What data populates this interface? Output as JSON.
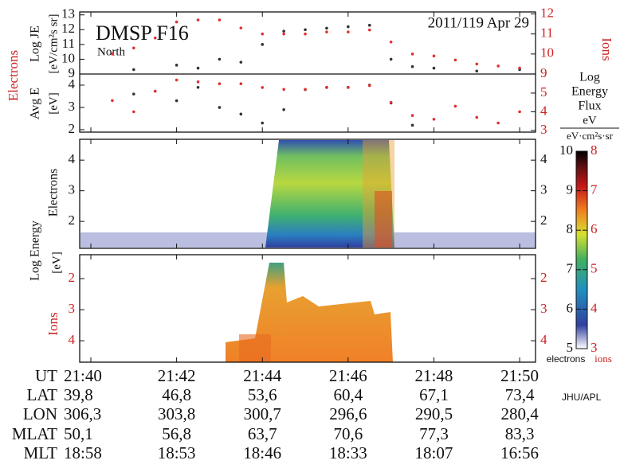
{
  "title": "DMSP F16",
  "hemisphere": "North",
  "date": "2011/119 Apr 29",
  "credit": "JHU/APL",
  "xlim": [
    -0.26,
    10.37
  ],
  "xticks": [
    {
      "value": 0,
      "label": "21:40"
    },
    {
      "value": 2,
      "label": "21:42"
    },
    {
      "value": 4,
      "label": "21:44"
    },
    {
      "value": 6,
      "label": "21:46"
    },
    {
      "value": 8,
      "label": "21:48"
    },
    {
      "value": 10,
      "label": "21:50"
    }
  ],
  "x": [
    0,
    0.5,
    1,
    1.5,
    2,
    2.5,
    3,
    3.5,
    4,
    4.5,
    5,
    5.5,
    6,
    6.5,
    7,
    7.5,
    8,
    8.5,
    9,
    9.5,
    10
  ],
  "flux_panel": {
    "y_label": "Log JE",
    "y_unit": "[eV/cm²s sr]",
    "ylim": [
      9,
      13.2
    ],
    "yticks": [
      9,
      10,
      11,
      12,
      13
    ],
    "y2lim": [
      9,
      12.1
    ],
    "y2ticks": [
      9,
      10,
      11,
      12
    ],
    "series": [
      {
        "name": "Electrons",
        "color": "#333333",
        "axis": "y",
        "values": [
          null,
          null,
          9.3,
          null,
          9.6,
          9.4,
          10.0,
          9.8,
          11.0,
          11.9,
          12.0,
          12.1,
          12.2,
          12.3,
          10.0,
          9.5,
          9.4,
          null,
          9.2,
          null,
          9.3
        ]
      },
      {
        "name": "Ions",
        "color": "#e03030",
        "axis": "y2",
        "values": [
          null,
          10.0,
          10.3,
          10.8,
          11.6,
          11.7,
          11.7,
          11.3,
          11.0,
          11.0,
          11.0,
          11.1,
          11.1,
          11.2,
          10.6,
          10.0,
          9.9,
          9.7,
          9.5,
          9.4,
          9.3
        ]
      }
    ]
  },
  "energy_panel": {
    "y_label": "Avg E",
    "y_unit": "[eV]",
    "ylim": [
      1.89,
      4.5
    ],
    "yticks": [
      2,
      3,
      4
    ],
    "y2lim": [
      2.91,
      6.02
    ],
    "y2ticks": [
      3,
      4,
      5
    ],
    "series": [
      {
        "name": "Electrons",
        "color": "#333333",
        "axis": "y",
        "values": [
          null,
          null,
          3.6,
          null,
          3.3,
          3.9,
          3.0,
          2.7,
          2.3,
          2.9,
          3.8,
          3.9,
          3.9,
          4.0,
          3.2,
          2.2,
          null,
          null,
          null,
          null,
          null
        ]
      },
      {
        "name": "Ions",
        "color": "#e03030",
        "axis": "y2",
        "values": [
          null,
          4.6,
          4.0,
          5.1,
          5.7,
          5.6,
          5.5,
          5.5,
          5.3,
          5.2,
          5.2,
          5.3,
          5.3,
          5.4,
          4.5,
          3.8,
          3.6,
          4.3,
          3.7,
          3.4,
          4.0
        ]
      }
    ]
  },
  "spectrogram_label": "Log Energy",
  "spectrogram_unit": "[eV]",
  "electron_spectrogram": {
    "y_label": "Electrons",
    "ylim": [
      1.12,
      4.68
    ],
    "yticks": [
      2,
      3,
      4
    ]
  },
  "ion_spectrogram": {
    "y_label": "Ions",
    "ylim": [
      1.23,
      4.69
    ],
    "yticks": [
      2,
      3,
      4
    ]
  },
  "colorbar": {
    "title": [
      "Log",
      "Energy",
      "Flux"
    ],
    "unit_top": "eV",
    "unit_bottom": "eV·cm²s·sr",
    "clim": [
      5,
      10
    ],
    "ticks": [
      5,
      6,
      7,
      8,
      9,
      10
    ],
    "c2lim": [
      3,
      8
    ],
    "c2ticks": [
      3,
      4,
      5,
      6,
      7,
      8
    ],
    "labels": [
      "electrons",
      "ions"
    ]
  },
  "footer": {
    "row_label": "UT",
    "rows": [
      [
        "LAT",
        "39,8",
        "46,8",
        "53,6",
        "60,4",
        "67,1",
        "73,4"
      ],
      [
        "LON",
        "306,3",
        "303,8",
        "300,7",
        "296,6",
        "290,5",
        "280,4"
      ],
      [
        "MLAT",
        "50,1",
        "56,8",
        "63,7",
        "70,6",
        "77,3",
        "83,3"
      ],
      [
        "MLT",
        "18:58",
        "18:53",
        "18:46",
        "18:33",
        "18:07",
        "16:56"
      ]
    ]
  }
}
